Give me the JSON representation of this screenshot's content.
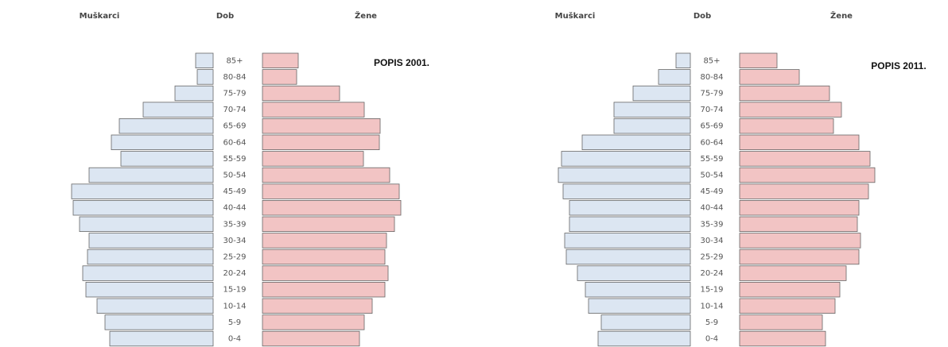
{
  "chart_data": [
    {
      "type": "pyramid",
      "title": "POPIS 2001.",
      "left_label": "Muškarci",
      "center_label": "Dob",
      "right_label": "Žene",
      "categories": [
        "85+",
        "80-84",
        "75-79",
        "70-74",
        "65-69",
        "60-64",
        "55-59",
        "50-54",
        "45-49",
        "40-44",
        "35-39",
        "30-34",
        "25-29",
        "20-24",
        "15-19",
        "10-14",
        "5-9",
        "0-4"
      ],
      "series": [
        {
          "name": "Muškarci",
          "color": "#dce6f2",
          "values": [
            22,
            20,
            48,
            88,
            118,
            128,
            116,
            156,
            178,
            176,
            168,
            156,
            158,
            164,
            160,
            146,
            136,
            130
          ]
        },
        {
          "name": "Žene",
          "color": "#f2c4c4",
          "values": [
            45,
            43,
            97,
            128,
            148,
            147,
            127,
            160,
            172,
            174,
            166,
            156,
            154,
            158,
            154,
            138,
            128,
            122
          ]
        }
      ]
    },
    {
      "type": "pyramid",
      "title": "POPIS 2011.",
      "left_label": "Muškarci",
      "center_label": "Dob",
      "right_label": "Žene",
      "categories": [
        "85+",
        "80-84",
        "75-79",
        "70-74",
        "65-69",
        "60-64",
        "55-59",
        "50-54",
        "45-49",
        "40-44",
        "35-39",
        "30-34",
        "25-29",
        "20-24",
        "15-19",
        "10-14",
        "5-9",
        "0-4"
      ],
      "series": [
        {
          "name": "Muškarci",
          "color": "#dce6f2",
          "values": [
            18,
            40,
            72,
            96,
            96,
            136,
            162,
            166,
            160,
            152,
            152,
            158,
            156,
            142,
            132,
            128,
            112,
            116
          ]
        },
        {
          "name": "Žene",
          "color": "#f2c4c4",
          "values": [
            47,
            75,
            113,
            128,
            118,
            150,
            164,
            170,
            162,
            150,
            148,
            152,
            150,
            134,
            126,
            120,
            104,
            108
          ]
        }
      ]
    }
  ]
}
